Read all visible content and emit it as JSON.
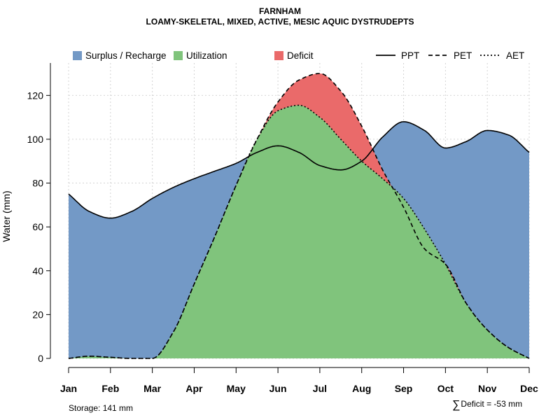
{
  "title": "FARNHAM",
  "subtitle": "LOAMY-SKELETAL, MIXED, ACTIVE, MESIC AQUIC DYSTRUDEPTS",
  "footer": {
    "storage_label": "Storage: 141 mm",
    "deficit_symbol": "∑",
    "deficit_label": "Deficit = -53 mm"
  },
  "colors": {
    "surplus": "#7399c6",
    "utilization": "#80c47c",
    "deficit": "#ea6a6a",
    "grid": "#d3d3d3",
    "axis": "#000000"
  },
  "chart_data": {
    "type": "area",
    "title": "FARNHAM",
    "subtitle": "LOAMY-SKELETAL, MIXED, ACTIVE, MESIC AQUIC DYSTRUDEPTS",
    "xlabel": "",
    "ylabel": "Water (mm)",
    "ylim": [
      0,
      135
    ],
    "yticks": [
      0,
      20,
      40,
      60,
      80,
      100,
      120
    ],
    "grid": true,
    "categories": [
      "Jan",
      "Feb",
      "Mar",
      "Apr",
      "May",
      "Jun",
      "Jul",
      "Aug",
      "Sep",
      "Oct",
      "Nov",
      "Dec"
    ],
    "legend": {
      "position": "top",
      "areas": [
        {
          "key": "surplus",
          "label": "Surplus / Recharge"
        },
        {
          "key": "utilization",
          "label": "Utilization"
        },
        {
          "key": "deficit",
          "label": "Deficit"
        }
      ],
      "lines": [
        {
          "key": "PPT",
          "label": "PPT",
          "dash": "solid"
        },
        {
          "key": "PET",
          "label": "PET",
          "dash": "dashed"
        },
        {
          "key": "AET",
          "label": "AET",
          "dash": "dotted"
        }
      ]
    },
    "series": [
      {
        "name": "PPT",
        "x": [
          1,
          1.5,
          2,
          2.5,
          3,
          3.5,
          4,
          4.5,
          5,
          5.5,
          6,
          6.5,
          7,
          7.5,
          8,
          8.5,
          9,
          9.5,
          10,
          10.5,
          11,
          11.5,
          12
        ],
        "values": [
          75,
          67,
          64,
          67,
          73,
          78,
          82,
          85.5,
          89,
          94,
          97,
          94,
          88,
          86,
          90,
          101,
          108,
          104,
          96,
          99,
          104,
          102,
          94
        ]
      },
      {
        "name": "PET",
        "x": [
          1,
          1.5,
          2,
          2.5,
          3,
          3.5,
          4,
          4.5,
          5,
          5.5,
          6,
          6.5,
          7,
          7.5,
          8,
          8.5,
          9,
          9.5,
          10,
          10.5,
          11,
          11.5,
          12
        ],
        "values": [
          0,
          1,
          0.5,
          0,
          0,
          12,
          34,
          56,
          79,
          100,
          117,
          127,
          130,
          122,
          106,
          86,
          69,
          50,
          43,
          25,
          13,
          5,
          0
        ]
      },
      {
        "name": "AET",
        "x": [
          1,
          1.5,
          2,
          2.5,
          3,
          3.5,
          4,
          4.5,
          5,
          5.5,
          6,
          6.5,
          7,
          7.5,
          8,
          8.5,
          9,
          9.5,
          10,
          10.5,
          11,
          11.5,
          12
        ],
        "values": [
          0,
          1,
          0.5,
          0,
          0,
          12,
          34,
          56,
          79,
          100,
          113,
          115.5,
          110,
          100,
          90,
          82,
          73,
          59,
          43,
          25,
          13,
          5,
          0
        ]
      }
    ]
  }
}
